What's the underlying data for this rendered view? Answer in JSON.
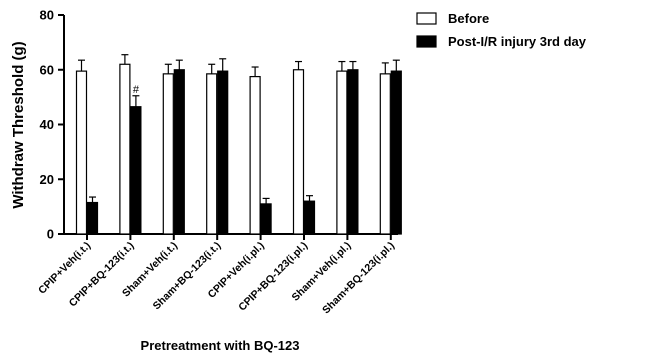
{
  "chart_data": {
    "type": "bar",
    "title": "",
    "xlabel": "Pretreatment with BQ-123",
    "ylabel": "Withdraw Threshold (g)",
    "ylim": [
      0,
      80
    ],
    "yticks": [
      "0",
      "20",
      "40",
      "60",
      "80"
    ],
    "categories": [
      "CPIP+Veh(i.t.)",
      "CPIP+BQ-123(i.t.)",
      "Sham+Veh(i.t.)",
      "Sham+BQ-123(i.t.)",
      "CPIP+Veh(i.pl.)",
      "CPIP+BQ-123(i.pl.)",
      "Sham+Veh(i.pl.)",
      "Sham+BQ-123(i.pl.)"
    ],
    "series": [
      {
        "name": "Before",
        "fill": "#ffffff",
        "values": [
          59.5,
          62,
          58.5,
          58.5,
          57.5,
          60,
          59.5,
          58.5
        ],
        "errors": [
          4,
          3.5,
          3.5,
          3.5,
          3.5,
          3,
          3.5,
          4
        ]
      },
      {
        "name": "Post-I/R injury 3rd day",
        "fill": "#000000",
        "values": [
          11.5,
          46.5,
          60,
          59.5,
          11,
          12,
          60,
          59.5
        ],
        "errors": [
          2,
          4,
          3.5,
          4.5,
          2,
          2,
          3,
          4
        ]
      }
    ],
    "annotations": [
      {
        "text": "#",
        "category_index": 1,
        "series_index": 1
      }
    ],
    "legend_position": "top-right",
    "grid": false
  }
}
